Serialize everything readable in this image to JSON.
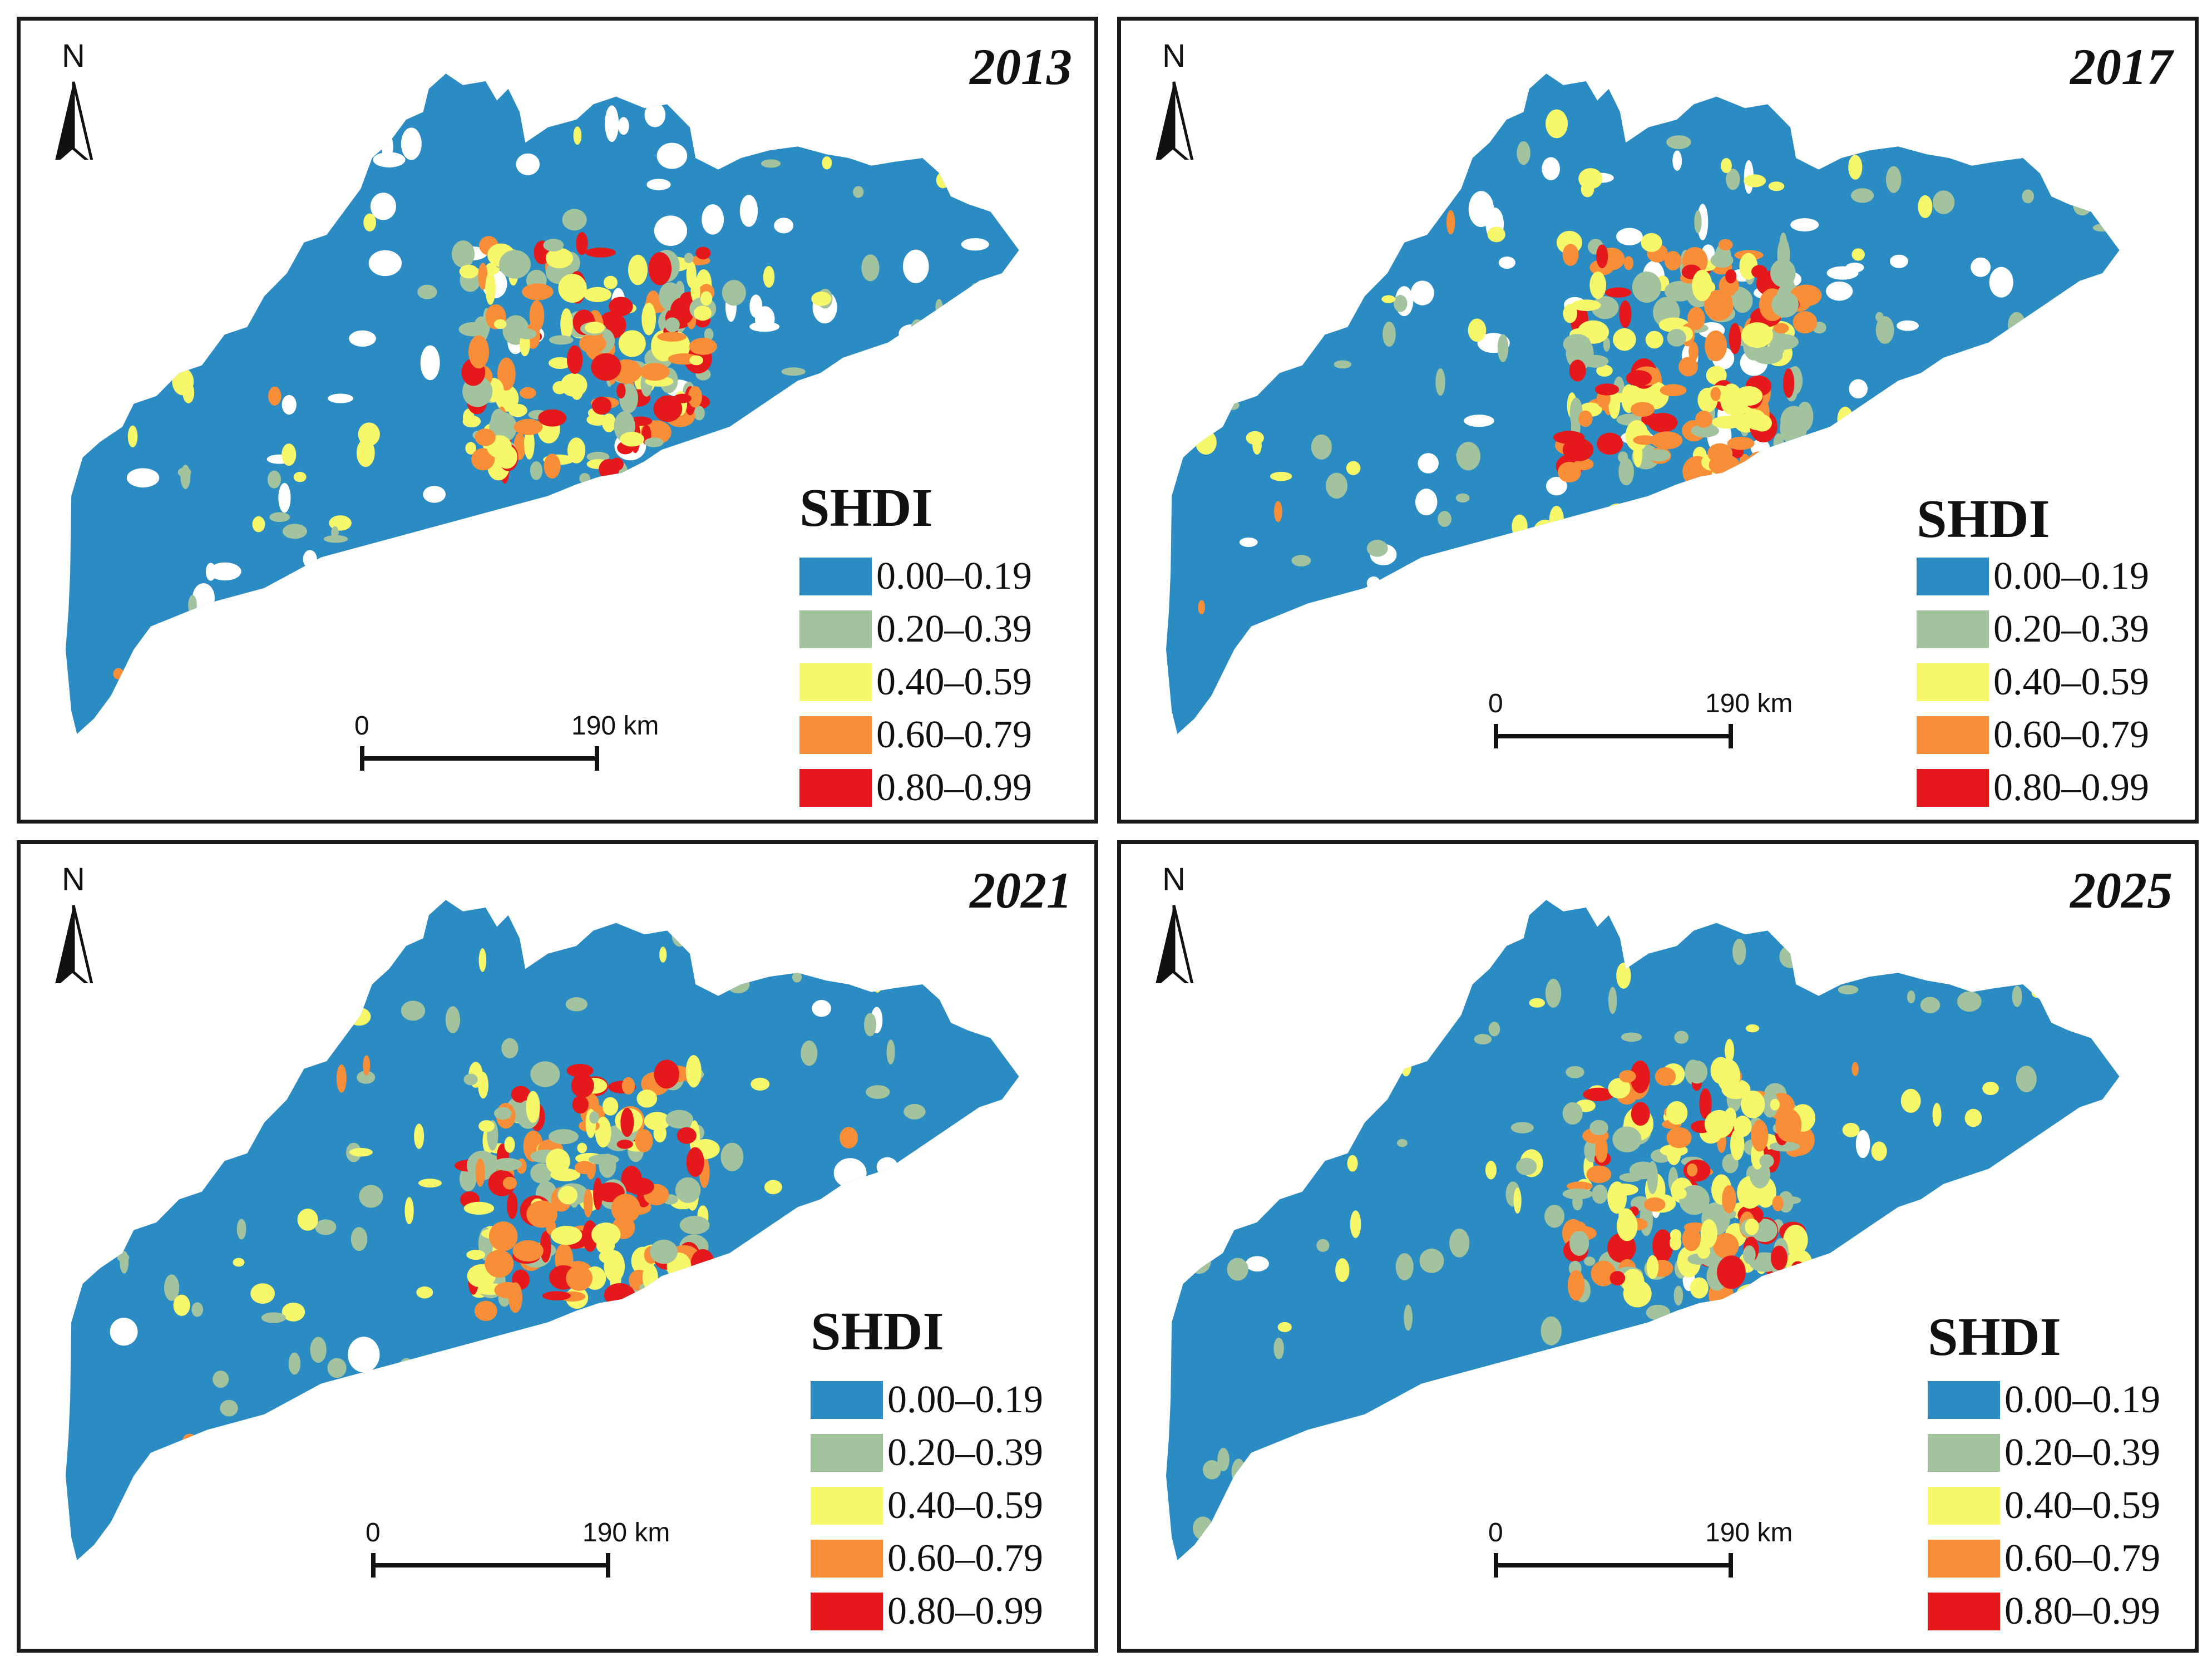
{
  "figure": {
    "colors": {
      "class_0": "#2b8cc4",
      "class_1": "#a3c39e",
      "class_2": "#f7f76a",
      "class_3": "#f98e38",
      "class_4": "#e5191c"
    },
    "panels": [
      {
        "year": "2013",
        "north_label": "N",
        "legend_title": "SHDI",
        "legend_items": [
          {
            "label": "0.00–0.19",
            "color": "#2b8cc4"
          },
          {
            "label": "0.20–0.39",
            "color": "#a3c39e"
          },
          {
            "label": "0.40–0.59",
            "color": "#f7f76a"
          },
          {
            "label": "0.60–0.79",
            "color": "#f98e38"
          },
          {
            "label": "0.80–0.99",
            "color": "#e5191c"
          }
        ],
        "scale_start": "0",
        "scale_end": "190 km"
      },
      {
        "year": "2017",
        "north_label": "N",
        "legend_title": "SHDI",
        "legend_items": [
          {
            "label": "0.00–0.19",
            "color": "#2b8cc4"
          },
          {
            "label": "0.20–0.39",
            "color": "#a3c39e"
          },
          {
            "label": "0.40–0.59",
            "color": "#f7f76a"
          },
          {
            "label": "0.60–0.79",
            "color": "#f98e38"
          },
          {
            "label": "0.80–0.99",
            "color": "#e5191c"
          }
        ],
        "scale_start": "0",
        "scale_end": "190 km"
      },
      {
        "year": "2021",
        "north_label": "N",
        "legend_title": "SHDI",
        "legend_items": [
          {
            "label": "0.00–0.19",
            "color": "#2b8cc4"
          },
          {
            "label": "0.20–0.39",
            "color": "#a3c39e"
          },
          {
            "label": "0.40–0.59",
            "color": "#f7f76a"
          },
          {
            "label": "0.60–0.79",
            "color": "#f98e38"
          },
          {
            "label": "0.80–0.99",
            "color": "#e5191c"
          }
        ],
        "scale_start": "0",
        "scale_end": "190 km"
      },
      {
        "year": "2025",
        "north_label": "N",
        "legend_title": "SHDI",
        "legend_items": [
          {
            "label": "0.00–0.19",
            "color": "#2b8cc4"
          },
          {
            "label": "0.20–0.39",
            "color": "#a3c39e"
          },
          {
            "label": "0.40–0.59",
            "color": "#f7f76a"
          },
          {
            "label": "0.60–0.79",
            "color": "#f98e38"
          },
          {
            "label": "0.80–0.99",
            "color": "#e5191c"
          }
        ],
        "scale_start": "0",
        "scale_end": "190 km"
      }
    ]
  }
}
